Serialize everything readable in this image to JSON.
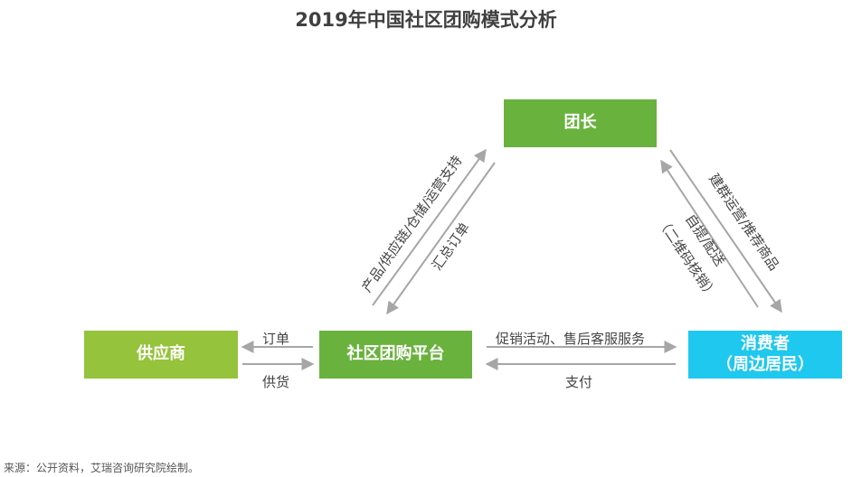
{
  "title": "2019年中国社区团购模式分析",
  "nodes": {
    "leader": "团长",
    "supplier": "供应商",
    "platform": "社区团购平台",
    "consumer_line1": "消费者",
    "consumer_line2": "（周边居民）"
  },
  "edges": {
    "platform_to_supplier": "订单",
    "supplier_to_platform": "供货",
    "platform_to_consumer": "促销活动、售后客服服务",
    "consumer_to_platform": "支付",
    "platform_to_leader": "产品/供应链/仓储/运营支持",
    "leader_to_platform": "汇总订单",
    "leader_to_consumer": "建群运营/推荐商品",
    "consumer_to_leader_line1": "自提/配送",
    "consumer_to_leader_line2": "（二维码核销）"
  },
  "colors": {
    "leader": "#6ab23e",
    "supplier": "#95c33c",
    "platform": "#6ab23e",
    "consumer": "#1fc8ef",
    "arrow": "#a6a6a6"
  },
  "footer": "来源：公开资料，艾瑞咨询研究院绘制。"
}
